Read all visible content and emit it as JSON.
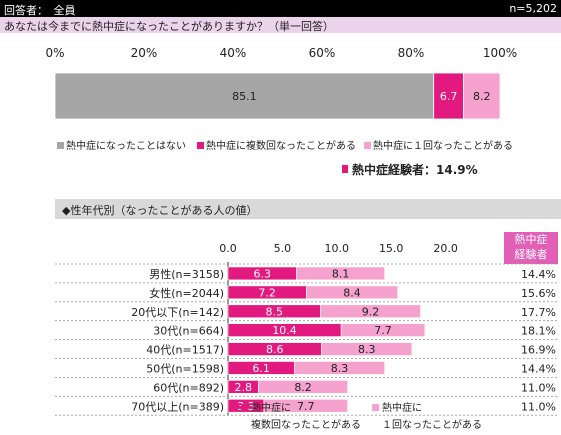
{
  "header": {
    "respondents": "回答者：　全員",
    "n": "n=5,202"
  },
  "question": "あなたは今までに熱中症になったことがありますか？（単一回答）",
  "colors": {
    "never": "#a6a6a6",
    "multiple": "#e2197e",
    "once": "#f5a3ce",
    "highlight": "#e35fb5"
  },
  "legend": {
    "never": "熱中症になったことはない",
    "multiple": "熱中症に複数回なったことがある",
    "once": "熱中症に１回なったことがある"
  },
  "experience_summary": "熱中症経験者：14.9%",
  "subsection_title": "◆性年代別（なったことがある人の値）",
  "exp_header": {
    "line1": "熱中症",
    "line2": "経験者"
  },
  "bottom_legend": {
    "multiple_line1": "熱中症に",
    "multiple_line2": "複数回なったことがある",
    "once_line1": "熱中症に",
    "once_line2": "１回なったことがある"
  },
  "chart_data": [
    {
      "type": "bar",
      "orientation": "horizontal",
      "stacked": true,
      "xlim": [
        0,
        100
      ],
      "x_ticks": [
        "0%",
        "20%",
        "40%",
        "60%",
        "80%",
        "100%"
      ],
      "categories": [
        "全員"
      ],
      "series": [
        {
          "name": "熱中症になったことはない",
          "values": [
            85.1
          ],
          "labels": [
            "85.1"
          ]
        },
        {
          "name": "熱中症に複数回なったことがある",
          "values": [
            6.7
          ],
          "labels": [
            "6.7"
          ]
        },
        {
          "name": "熱中症に１回なったことがある",
          "values": [
            8.2
          ],
          "labels": [
            "8.2"
          ]
        }
      ]
    },
    {
      "type": "bar",
      "orientation": "horizontal",
      "stacked": true,
      "xlim": [
        0,
        25
      ],
      "x_ticks": [
        "0.0",
        "5.0",
        "10.0",
        "15.0",
        "20.0"
      ],
      "categories": [
        "男性(n=3158)",
        "女性(n=2044)",
        "20代以下(n=142)",
        "30代(n=664)",
        "40代(n=1517)",
        "50代(n=1598)",
        "60代(n=892)",
        "70代以上(n=389)"
      ],
      "series": [
        {
          "name": "熱中症に複数回なったことがある",
          "values": [
            6.3,
            7.2,
            8.5,
            10.4,
            8.6,
            6.1,
            2.8,
            3.3
          ],
          "labels": [
            "6.3",
            "7.2",
            "8.5",
            "10.4",
            "8.6",
            "6.1",
            "2.8",
            "3.3"
          ]
        },
        {
          "name": "熱中症に１回なったことがある",
          "values": [
            8.1,
            8.4,
            9.2,
            7.7,
            8.3,
            8.3,
            8.2,
            7.7
          ],
          "labels": [
            "8.1",
            "8.4",
            "9.2",
            "7.7",
            "8.3",
            "8.3",
            "8.2",
            "7.7"
          ]
        }
      ],
      "experienced_total": [
        "14.4%",
        "15.6%",
        "17.7%",
        "18.1%",
        "16.9%",
        "14.4%",
        "11.0%",
        "11.0%"
      ]
    }
  ]
}
